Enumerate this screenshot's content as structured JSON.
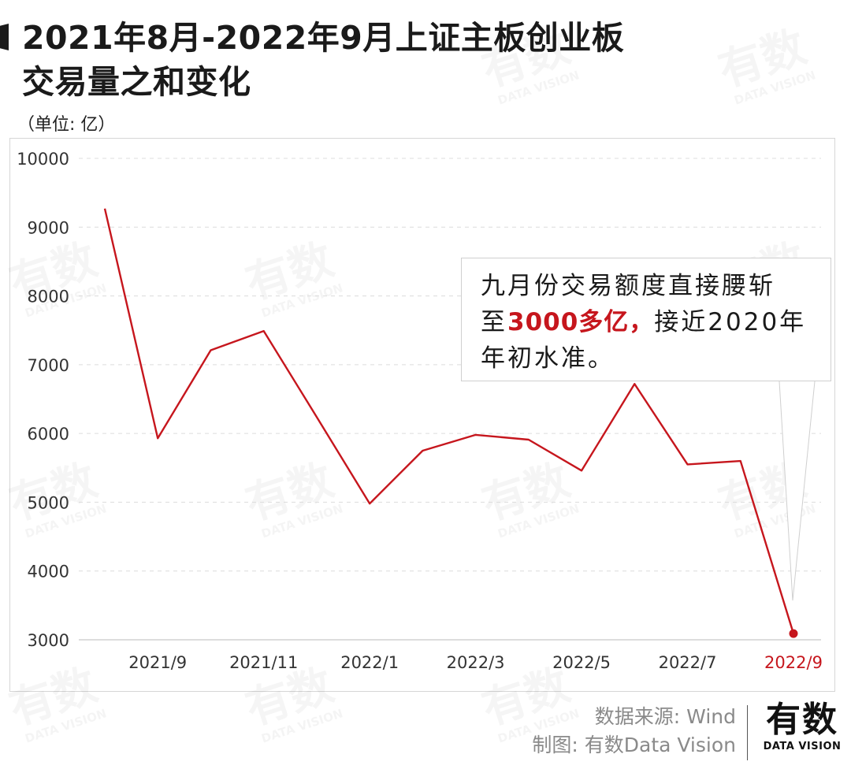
{
  "title_line1": "2021年8月-2022年9月上证主板创业板",
  "title_line2": "交易量之和变化",
  "unit": "（单位: 亿）",
  "annotation": {
    "line1": "九月份交易额度直接腰斩",
    "line2_pre": "至",
    "line2_highlight": "3000多亿，",
    "line2_post": "接近2020年",
    "line3": "年初水准。"
  },
  "source": "数据来源: Wind",
  "credit": "制图: 有数Data Vision",
  "logo": {
    "main": "有数",
    "sub": "DATA VISION"
  },
  "watermark": {
    "main": "有数",
    "sub": "DATA VISION"
  },
  "colors": {
    "line": "#c6161d",
    "highlight": "#c6161d"
  },
  "chart_data": {
    "type": "line",
    "title": "2021年8月-2022年9月上证主板创业板交易量之和变化",
    "ylabel": "",
    "xlabel": "",
    "ylim": [
      3000,
      10000
    ],
    "yticks": [
      3000,
      4000,
      5000,
      6000,
      7000,
      8000,
      9000,
      10000
    ],
    "x": [
      "2021/8",
      "2021/9",
      "2021/10",
      "2021/11",
      "2021/12",
      "2022/1",
      "2022/2",
      "2022/3",
      "2022/4",
      "2022/5",
      "2022/6",
      "2022/7",
      "2022/8",
      "2022/9"
    ],
    "xtick_labels": [
      "2021/9",
      "2021/11",
      "2022/1",
      "2022/3",
      "2022/5",
      "2022/7",
      "2022/9"
    ],
    "values": [
      9270,
      5930,
      7210,
      7490,
      6240,
      4980,
      5750,
      5980,
      5910,
      5460,
      6720,
      5550,
      5600,
      3090
    ],
    "grid": true,
    "highlight_last_point": true
  }
}
